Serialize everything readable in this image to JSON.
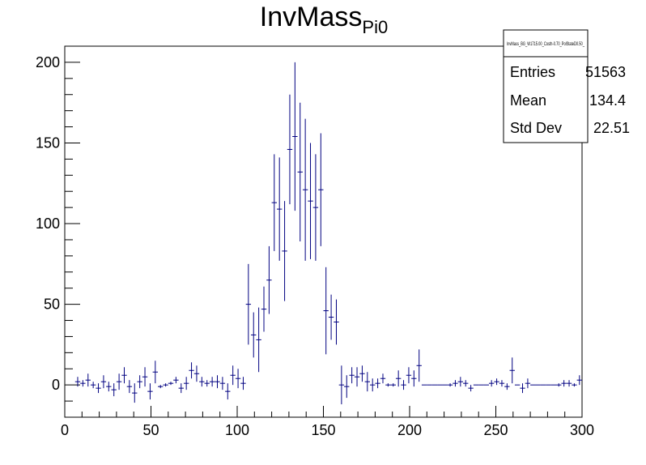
{
  "chart_data": {
    "type": "scatter",
    "title": "InvMass",
    "title_subscript": "Pi0",
    "xlabel": "",
    "ylabel": "",
    "xlim": [
      0,
      300
    ],
    "ylim": [
      -20,
      210
    ],
    "x_ticks": [
      0,
      50,
      100,
      150,
      200,
      250,
      300
    ],
    "y_ticks": [
      0,
      50,
      100,
      150,
      200
    ],
    "grid": false,
    "color": "#000080",
    "stats_box": {
      "name": "InvMass_BG_W1715.00_Costh-0.70_PolStateD0.50_",
      "rows": [
        {
          "label": "Entries",
          "value": "51563"
        },
        {
          "label": "Mean",
          "value": "134.4"
        },
        {
          "label": "Std Dev",
          "value": "22.51"
        }
      ]
    },
    "bin_width": 3,
    "points": [
      {
        "x": 7.5,
        "y": 2,
        "err": 3
      },
      {
        "x": 10.5,
        "y": 1,
        "err": 2
      },
      {
        "x": 13.5,
        "y": 3,
        "err": 4
      },
      {
        "x": 16.5,
        "y": 0,
        "err": 2
      },
      {
        "x": 19.5,
        "y": -2,
        "err": 3
      },
      {
        "x": 22.5,
        "y": 2,
        "err": 4
      },
      {
        "x": 25.5,
        "y": -1,
        "err": 3
      },
      {
        "x": 28.5,
        "y": -3,
        "err": 4
      },
      {
        "x": 31.5,
        "y": 2,
        "err": 5
      },
      {
        "x": 34.5,
        "y": 6,
        "err": 5
      },
      {
        "x": 37.5,
        "y": -1,
        "err": 4
      },
      {
        "x": 40.5,
        "y": -5,
        "err": 6
      },
      {
        "x": 43.5,
        "y": 2,
        "err": 4
      },
      {
        "x": 46.5,
        "y": 5,
        "err": 6
      },
      {
        "x": 49.5,
        "y": -4,
        "err": 5
      },
      {
        "x": 52.5,
        "y": 8,
        "err": 7
      },
      {
        "x": 55.5,
        "y": -1,
        "err": 1
      },
      {
        "x": 58.5,
        "y": 0,
        "err": 1
      },
      {
        "x": 61.5,
        "y": 1,
        "err": 1
      },
      {
        "x": 64.5,
        "y": 3,
        "err": 2
      },
      {
        "x": 67.5,
        "y": -2,
        "err": 3
      },
      {
        "x": 70.5,
        "y": 1,
        "err": 4
      },
      {
        "x": 73.5,
        "y": 9,
        "err": 5
      },
      {
        "x": 76.5,
        "y": 7,
        "err": 5
      },
      {
        "x": 79.5,
        "y": 2,
        "err": 3
      },
      {
        "x": 82.5,
        "y": 1,
        "err": 2
      },
      {
        "x": 85.5,
        "y": 2,
        "err": 3
      },
      {
        "x": 88.5,
        "y": 2,
        "err": 4
      },
      {
        "x": 91.5,
        "y": 1,
        "err": 4
      },
      {
        "x": 94.5,
        "y": -4,
        "err": 5
      },
      {
        "x": 97.5,
        "y": 6,
        "err": 6
      },
      {
        "x": 100.5,
        "y": 4,
        "err": 6
      },
      {
        "x": 103.5,
        "y": 1,
        "err": 4
      },
      {
        "x": 106.5,
        "y": 50,
        "err": 25
      },
      {
        "x": 109.5,
        "y": 31,
        "err": 14
      },
      {
        "x": 112.5,
        "y": 28,
        "err": 20
      },
      {
        "x": 115.5,
        "y": 47,
        "err": 14
      },
      {
        "x": 118.5,
        "y": 65,
        "err": 21
      },
      {
        "x": 121.5,
        "y": 113,
        "err": 30
      },
      {
        "x": 124.5,
        "y": 109,
        "err": 32
      },
      {
        "x": 127.5,
        "y": 83,
        "err": 31
      },
      {
        "x": 130.5,
        "y": 146,
        "err": 34
      },
      {
        "x": 133.5,
        "y": 154,
        "err": 46
      },
      {
        "x": 136.5,
        "y": 132,
        "err": 43
      },
      {
        "x": 139.5,
        "y": 121,
        "err": 44
      },
      {
        "x": 142.5,
        "y": 114,
        "err": 36
      },
      {
        "x": 145.5,
        "y": 110,
        "err": 33
      },
      {
        "x": 148.5,
        "y": 121,
        "err": 35
      },
      {
        "x": 151.5,
        "y": 46,
        "err": 27
      },
      {
        "x": 154.5,
        "y": 42,
        "err": 14
      },
      {
        "x": 157.5,
        "y": 39,
        "err": 14
      },
      {
        "x": 160.5,
        "y": 0,
        "err": 12
      },
      {
        "x": 163.5,
        "y": -1,
        "err": 7
      },
      {
        "x": 166.5,
        "y": 6,
        "err": 5
      },
      {
        "x": 169.5,
        "y": 5,
        "err": 6
      },
      {
        "x": 172.5,
        "y": 7,
        "err": 5
      },
      {
        "x": 175.5,
        "y": 2,
        "err": 6
      },
      {
        "x": 178.5,
        "y": 0,
        "err": 4
      },
      {
        "x": 181.5,
        "y": 1,
        "err": 3
      },
      {
        "x": 184.5,
        "y": 4,
        "err": 3
      },
      {
        "x": 187.5,
        "y": 0,
        "err": 1
      },
      {
        "x": 190.5,
        "y": 0,
        "err": 1
      },
      {
        "x": 193.5,
        "y": 4,
        "err": 5
      },
      {
        "x": 196.5,
        "y": 0,
        "err": 3
      },
      {
        "x": 199.5,
        "y": 6,
        "err": 5
      },
      {
        "x": 202.5,
        "y": 4,
        "err": 5
      },
      {
        "x": 205.5,
        "y": 12,
        "err": 10
      },
      {
        "x": 208.5,
        "y": 0,
        "err": 0
      },
      {
        "x": 211.5,
        "y": 0,
        "err": 0
      },
      {
        "x": 214.5,
        "y": 0,
        "err": 0
      },
      {
        "x": 217.5,
        "y": 0,
        "err": 0
      },
      {
        "x": 220.5,
        "y": 0,
        "err": 0
      },
      {
        "x": 223.5,
        "y": 0,
        "err": 1
      },
      {
        "x": 226.5,
        "y": 1,
        "err": 2
      },
      {
        "x": 229.5,
        "y": 2,
        "err": 3
      },
      {
        "x": 232.5,
        "y": 1,
        "err": 2
      },
      {
        "x": 235.5,
        "y": -2,
        "err": 2
      },
      {
        "x": 238.5,
        "y": 0,
        "err": 0
      },
      {
        "x": 241.5,
        "y": 0,
        "err": 0
      },
      {
        "x": 244.5,
        "y": 0,
        "err": 0
      },
      {
        "x": 247.5,
        "y": 1,
        "err": 2
      },
      {
        "x": 250.5,
        "y": 2,
        "err": 2
      },
      {
        "x": 253.5,
        "y": 1,
        "err": 2
      },
      {
        "x": 256.5,
        "y": -1,
        "err": 2
      },
      {
        "x": 259.5,
        "y": 9,
        "err": 8
      },
      {
        "x": 262.5,
        "y": 0,
        "err": 0
      },
      {
        "x": 265.5,
        "y": -2,
        "err": 3
      },
      {
        "x": 268.5,
        "y": 1,
        "err": 3
      },
      {
        "x": 271.5,
        "y": 0,
        "err": 0
      },
      {
        "x": 274.5,
        "y": 0,
        "err": 0
      },
      {
        "x": 277.5,
        "y": 0,
        "err": 0
      },
      {
        "x": 280.5,
        "y": 0,
        "err": 0
      },
      {
        "x": 283.5,
        "y": 0,
        "err": 0
      },
      {
        "x": 286.5,
        "y": 0,
        "err": 1
      },
      {
        "x": 289.5,
        "y": 1,
        "err": 2
      },
      {
        "x": 292.5,
        "y": 1,
        "err": 2
      },
      {
        "x": 295.5,
        "y": 0,
        "err": 1
      },
      {
        "x": 298.5,
        "y": 3,
        "err": 3
      }
    ]
  }
}
